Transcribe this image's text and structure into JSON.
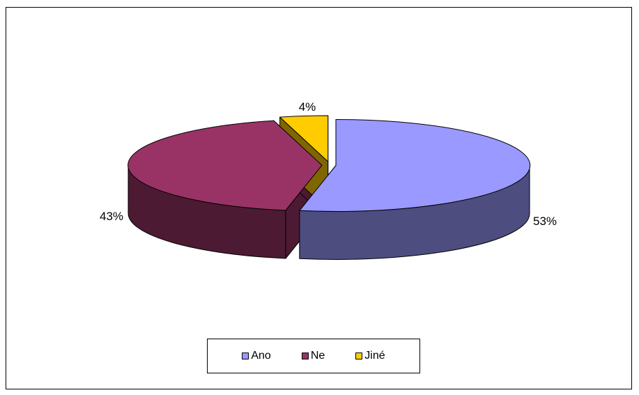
{
  "chart_data": {
    "type": "pie",
    "style": "3d-exploded",
    "categories": [
      "Ano",
      "Ne",
      "Jiné"
    ],
    "values": [
      53,
      43,
      4
    ],
    "data_labels": [
      "53%",
      "43%",
      "4%"
    ],
    "colors": {
      "top": [
        "#9999ff",
        "#993366",
        "#ffcc00"
      ],
      "side": [
        "#4d4d80",
        "#4d1a33",
        "#806600"
      ]
    },
    "legend_position": "bottom",
    "title": ""
  }
}
